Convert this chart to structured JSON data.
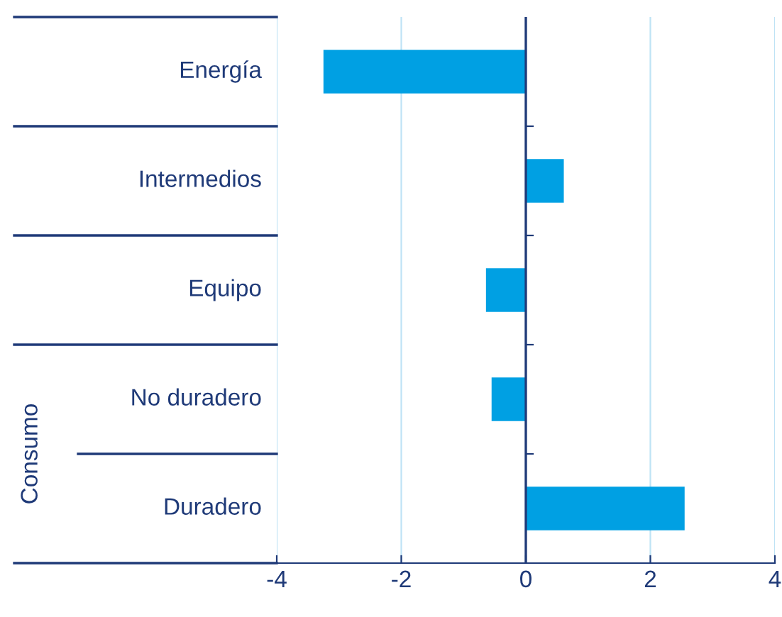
{
  "chart_data": {
    "type": "bar",
    "orientation": "horizontal",
    "categories": [
      "Energía",
      "Intermedios",
      "Equipo",
      "No duradero",
      "Duradero"
    ],
    "values": [
      -3.25,
      0.61,
      -0.64,
      -0.55,
      2.55
    ],
    "color": "#00a0e3",
    "xlim": [
      -4,
      4
    ],
    "xticks": [
      -4,
      -2,
      0,
      2,
      4
    ],
    "grid": "x",
    "ref_lines": [
      {
        "axis": "x",
        "value": 0,
        "color": "#1f3a78"
      }
    ],
    "annotations": [
      "Consumo"
    ]
  }
}
